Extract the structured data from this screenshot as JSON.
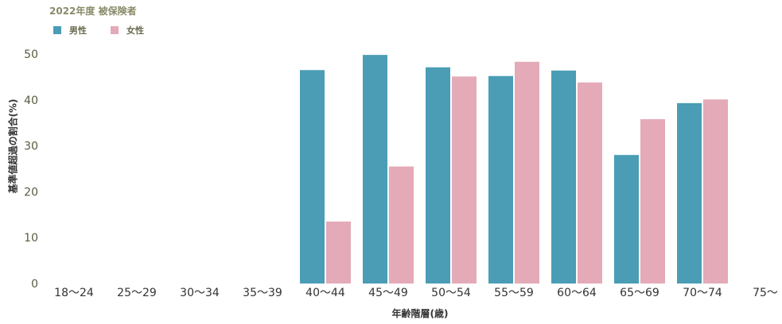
{
  "chart_data": {
    "type": "bar",
    "title": "2022年度 被保険者",
    "xlabel": "年齢階層(歳)",
    "ylabel": "基準値超過の割合(%)",
    "categories": [
      "18〜24",
      "25〜29",
      "30〜34",
      "35〜39",
      "40〜44",
      "45〜49",
      "50〜54",
      "55〜59",
      "60〜64",
      "65〜69",
      "70〜74",
      "75〜"
    ],
    "series": [
      {
        "name": "男性",
        "color": "#4a9db5",
        "values": [
          null,
          null,
          null,
          null,
          46.5,
          49.8,
          47.1,
          45.2,
          46.4,
          28.0,
          39.3,
          null
        ]
      },
      {
        "name": "女性",
        "color": "#e4aab8",
        "values": [
          null,
          null,
          null,
          null,
          13.5,
          25.5,
          45.1,
          48.3,
          43.8,
          35.8,
          40.1,
          null
        ]
      }
    ],
    "ylim": [
      0,
      50
    ],
    "yticks": [
      0,
      10,
      20,
      30,
      40,
      50
    ],
    "legend": "top-left",
    "grid": false
  }
}
